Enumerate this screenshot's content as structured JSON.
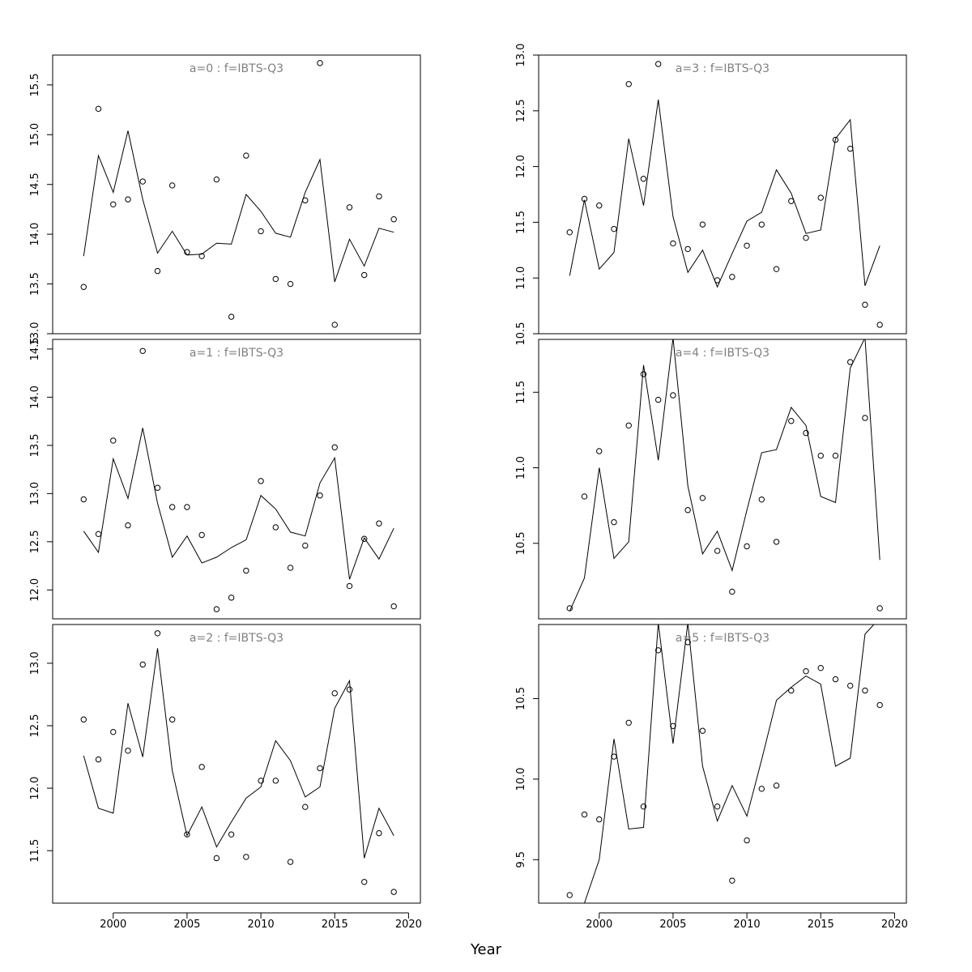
{
  "chart_data": {
    "type": "scatter",
    "xlabel": "Year",
    "xlim": [
      1995.9,
      2020.8
    ],
    "x_ticks": [
      2000,
      2005,
      2010,
      2015,
      2020
    ],
    "x_tick_labels": [
      "2000",
      "2005",
      "2010",
      "2015",
      "2020"
    ],
    "panels": [
      {
        "title": "a=0  :  f=IBTS-Q3",
        "ylim": [
          13.0,
          15.8
        ],
        "y_ticks": [
          13.0,
          13.5,
          14.0,
          14.5,
          15.0,
          15.5
        ],
        "y_tick_labels": [
          "13.0",
          "13.5",
          "14.0",
          "14.5",
          "15.0",
          "15.5"
        ],
        "points": {
          "x": [
            1998,
            1999,
            2000,
            2001,
            2002,
            2003,
            2004,
            2005,
            2006,
            2007,
            2008,
            2009,
            2010,
            2011,
            2012,
            2013,
            2014,
            2015,
            2016,
            2017,
            2018,
            2019
          ],
          "y": [
            13.47,
            15.26,
            14.3,
            14.35,
            14.53,
            13.63,
            14.49,
            13.82,
            13.78,
            14.55,
            13.17,
            14.79,
            14.03,
            13.55,
            13.5,
            14.34,
            15.72,
            13.09,
            14.27,
            13.59,
            14.38,
            14.15
          ]
        },
        "line": {
          "x": [
            1998,
            1999,
            2000,
            2001,
            2002,
            2003,
            2004,
            2005,
            2006,
            2007,
            2008,
            2009,
            2010,
            2011,
            2012,
            2013,
            2014,
            2015,
            2016,
            2017,
            2018,
            2019
          ],
          "y": [
            13.78,
            14.79,
            14.42,
            15.04,
            14.35,
            13.81,
            14.03,
            13.79,
            13.8,
            13.91,
            13.9,
            14.4,
            14.23,
            14.01,
            13.97,
            14.42,
            14.75,
            13.52,
            13.95,
            13.68,
            14.06,
            14.02
          ]
        }
      },
      {
        "title": "a=1  :  f=IBTS-Q3",
        "ylim": [
          11.7,
          14.6
        ],
        "y_ticks": [
          12.0,
          12.5,
          13.0,
          13.5,
          14.0,
          14.5
        ],
        "y_tick_labels": [
          "12.0",
          "12.5",
          "13.0",
          "13.5",
          "14.0",
          "14.5"
        ],
        "points": {
          "x": [
            1998,
            1999,
            2000,
            2001,
            2002,
            2003,
            2004,
            2005,
            2006,
            2007,
            2008,
            2009,
            2010,
            2011,
            2012,
            2013,
            2014,
            2015,
            2016,
            2017,
            2018,
            2019
          ],
          "y": [
            12.94,
            12.58,
            13.55,
            12.67,
            14.48,
            13.06,
            12.86,
            12.86,
            12.57,
            11.8,
            11.92,
            12.2,
            13.13,
            12.65,
            12.23,
            12.46,
            12.98,
            13.48,
            12.04,
            12.53,
            12.69,
            11.83
          ]
        },
        "line": {
          "x": [
            1998,
            1999,
            2000,
            2001,
            2002,
            2003,
            2004,
            2005,
            2006,
            2007,
            2008,
            2009,
            2010,
            2011,
            2012,
            2013,
            2014,
            2015,
            2016,
            2017,
            2018,
            2019
          ],
          "y": [
            12.61,
            12.39,
            13.36,
            12.95,
            13.68,
            12.9,
            12.34,
            12.56,
            12.28,
            12.34,
            12.44,
            12.52,
            12.98,
            12.84,
            12.6,
            12.56,
            13.11,
            13.37,
            12.11,
            12.54,
            12.32,
            12.64
          ]
        }
      },
      {
        "title": "a=2  :  f=IBTS-Q3",
        "ylim": [
          11.08,
          13.31
        ],
        "y_ticks": [
          11.5,
          12.0,
          12.5,
          13.0
        ],
        "y_tick_labels": [
          "11.5",
          "12.0",
          "12.5",
          "13.0"
        ],
        "points": {
          "x": [
            1998,
            1999,
            2000,
            2001,
            2002,
            2003,
            2004,
            2005,
            2006,
            2007,
            2008,
            2009,
            2010,
            2011,
            2012,
            2013,
            2014,
            2015,
            2016,
            2017,
            2018,
            2019
          ],
          "y": [
            12.55,
            12.23,
            12.45,
            12.3,
            12.99,
            13.24,
            12.55,
            11.63,
            12.17,
            11.44,
            11.63,
            11.45,
            12.06,
            12.06,
            11.41,
            11.85,
            12.16,
            12.76,
            12.79,
            11.25,
            11.64,
            11.17
          ]
        },
        "line": {
          "x": [
            1998,
            1999,
            2000,
            2001,
            2002,
            2003,
            2004,
            2005,
            2006,
            2007,
            2008,
            2009,
            2010,
            2011,
            2012,
            2013,
            2014,
            2015,
            2016,
            2017,
            2018,
            2019
          ],
          "y": [
            12.26,
            11.84,
            11.8,
            12.68,
            12.25,
            13.12,
            12.14,
            11.62,
            11.85,
            11.53,
            11.73,
            11.92,
            12.01,
            12.38,
            12.22,
            11.93,
            12.01,
            12.64,
            12.86,
            11.44,
            11.84,
            11.62
          ]
        }
      },
      {
        "title": "a=3  :  f=IBTS-Q3",
        "ylim": [
          10.5,
          13.0
        ],
        "y_ticks": [
          10.5,
          11.0,
          11.5,
          12.0,
          12.5,
          13.0
        ],
        "y_tick_labels": [
          "10.5",
          "11.0",
          "11.5",
          "12.0",
          "12.5",
          "13.0"
        ],
        "points": {
          "x": [
            1998,
            1999,
            2000,
            2001,
            2002,
            2003,
            2004,
            2005,
            2006,
            2007,
            2008,
            2009,
            2010,
            2011,
            2012,
            2013,
            2014,
            2015,
            2016,
            2017,
            2018,
            2019
          ],
          "y": [
            11.41,
            11.71,
            11.65,
            11.44,
            12.74,
            11.89,
            12.92,
            11.31,
            11.26,
            11.48,
            10.98,
            11.01,
            11.29,
            11.48,
            11.08,
            11.69,
            11.36,
            11.72,
            12.24,
            12.16,
            10.76,
            10.58
          ]
        },
        "line": {
          "x": [
            1998,
            1999,
            2000,
            2001,
            2002,
            2003,
            2004,
            2005,
            2006,
            2007,
            2008,
            2009,
            2010,
            2011,
            2012,
            2013,
            2014,
            2015,
            2016,
            2017,
            2018,
            2019
          ],
          "y": [
            11.02,
            11.7,
            11.08,
            11.23,
            12.25,
            11.65,
            12.6,
            11.55,
            11.05,
            11.25,
            10.92,
            11.22,
            11.51,
            11.59,
            11.97,
            11.76,
            11.4,
            11.43,
            12.25,
            12.42,
            10.93,
            11.29
          ]
        }
      },
      {
        "title": "a=4  :  f=IBTS-Q3",
        "ylim": [
          10.0,
          11.85
        ],
        "y_ticks": [
          10.5,
          11.0,
          11.5
        ],
        "y_tick_labels": [
          "10.5",
          "11.0",
          "11.5"
        ],
        "points": {
          "x": [
            1998,
            1999,
            2000,
            2001,
            2002,
            2003,
            2004,
            2005,
            2006,
            2007,
            2008,
            2009,
            2010,
            2011,
            2012,
            2013,
            2014,
            2015,
            2016,
            2017,
            2018,
            2019
          ],
          "y": [
            10.07,
            10.81,
            11.11,
            10.64,
            11.28,
            11.62,
            11.45,
            11.48,
            10.72,
            10.8,
            10.45,
            10.18,
            10.48,
            10.79,
            10.51,
            11.31,
            11.23,
            11.08,
            11.08,
            11.7,
            11.33,
            10.07
          ]
        },
        "line": {
          "x": [
            1998,
            1999,
            2000,
            2001,
            2002,
            2003,
            2004,
            2005,
            2006,
            2007,
            2008,
            2009,
            2010,
            2011,
            2012,
            2013,
            2014,
            2015,
            2016,
            2017,
            2018,
            2019
          ],
          "y": [
            10.05,
            10.27,
            11.0,
            10.4,
            10.51,
            11.68,
            11.05,
            11.86,
            10.88,
            10.43,
            10.58,
            10.32,
            10.72,
            11.1,
            11.12,
            11.4,
            11.28,
            10.81,
            10.77,
            11.66,
            11.86,
            10.39
          ]
        }
      },
      {
        "title": "a=5  :  f=IBTS-Q3",
        "ylim": [
          9.23,
          10.96
        ],
        "y_ticks": [
          9.5,
          10.0,
          10.5
        ],
        "y_tick_labels": [
          "9.5",
          "10.0",
          "10.5"
        ],
        "points": {
          "x": [
            1998,
            1999,
            2000,
            2001,
            2002,
            2003,
            2004,
            2005,
            2006,
            2007,
            2008,
            2009,
            2010,
            2011,
            2012,
            2013,
            2014,
            2015,
            2016,
            2017,
            2018,
            2019
          ],
          "y": [
            9.28,
            9.78,
            9.75,
            10.14,
            10.35,
            9.83,
            10.8,
            10.33,
            10.85,
            10.3,
            9.83,
            9.37,
            9.62,
            9.94,
            9.96,
            10.55,
            10.67,
            10.69,
            10.62,
            10.58,
            10.55,
            10.46
          ]
        },
        "line": {
          "x": [
            1998,
            1999,
            2000,
            2001,
            2002,
            2003,
            2004,
            2005,
            2006,
            2007,
            2008,
            2009,
            2010,
            2011,
            2012,
            2013,
            2014,
            2015,
            2016,
            2017,
            2018,
            2019
          ],
          "y": [
            9.0,
            9.23,
            9.5,
            10.25,
            9.69,
            9.7,
            10.97,
            10.22,
            10.97,
            10.08,
            9.74,
            9.96,
            9.77,
            10.12,
            10.49,
            10.57,
            10.64,
            10.59,
            10.08,
            10.13,
            10.9,
            11.0
          ]
        }
      }
    ]
  }
}
